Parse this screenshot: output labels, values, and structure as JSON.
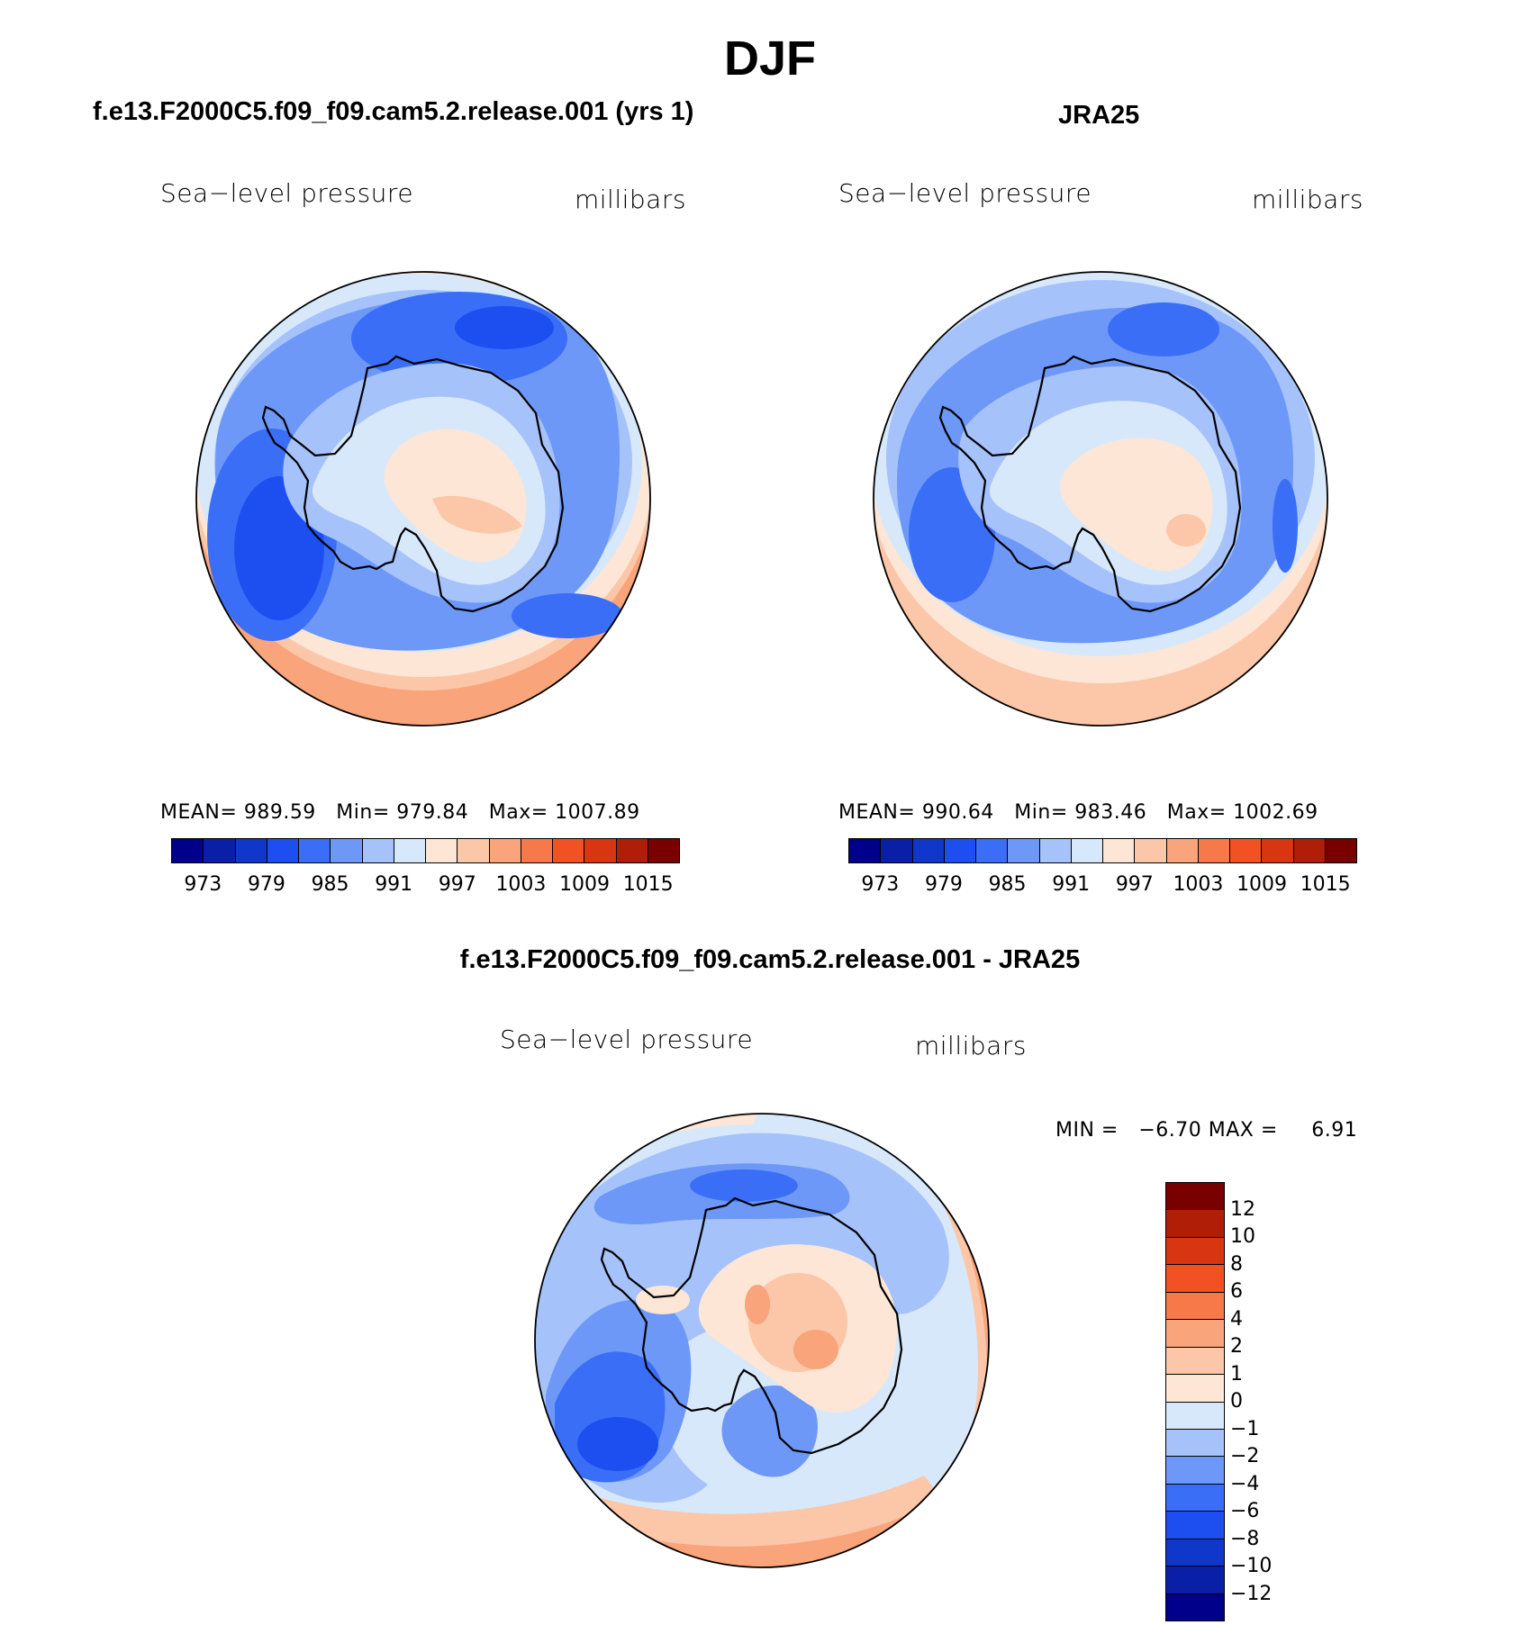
{
  "title": "DJF",
  "panels": {
    "model": {
      "title": "f.e13.F2000C5.f09_f09.cam5.2.release.001 (yrs 1)",
      "variable": "Sea−level pressure",
      "units": "millibars",
      "mean_label": "MEAN=",
      "mean": "989.59",
      "min_label": "Min=",
      "min": "979.84",
      "max_label": "Max=",
      "max": "1007.89"
    },
    "obs": {
      "title": "JRA25",
      "variable": "Sea−level pressure",
      "units": "millibars",
      "mean_label": "MEAN=",
      "mean": "990.64",
      "min_label": "Min=",
      "min": "983.46",
      "max_label": "Max=",
      "max": "1002.69"
    },
    "diff": {
      "title": "f.e13.F2000C5.f09_f09.cam5.2.release.001 - JRA25",
      "variable": "Sea−level pressure",
      "units": "millibars",
      "min_label": "MIN =",
      "min": "−6.70",
      "max_label": "MAX =",
      "max": "6.91"
    }
  },
  "colorbar_abs": {
    "ticks": [
      "973",
      "979",
      "985",
      "991",
      "997",
      "1003",
      "1009",
      "1015"
    ],
    "colors": [
      "#00008b",
      "#0a1fa8",
      "#0f37c9",
      "#1d4ff0",
      "#3a6ef7",
      "#6d98f8",
      "#a6c2fa",
      "#d8e8fb",
      "#fde6d6",
      "#fcc6a8",
      "#f9a47a",
      "#f7794a",
      "#f25223",
      "#d83610",
      "#b01e08",
      "#7a0000"
    ]
  },
  "colorbar_diff": {
    "ticks": [
      "12",
      "10",
      "8",
      "6",
      "4",
      "2",
      "1",
      "0",
      "−1",
      "−2",
      "−4",
      "−6",
      "−8",
      "−10",
      "−12"
    ],
    "colors": [
      "#7a0000",
      "#b01e08",
      "#d83610",
      "#f25223",
      "#f7794a",
      "#f9a47a",
      "#fcc6a8",
      "#fde6d6",
      "#d8e8fb",
      "#a6c2fa",
      "#6d98f8",
      "#3a6ef7",
      "#1d4ff0",
      "#0f37c9",
      "#0a1fa8",
      "#00008b"
    ]
  }
}
